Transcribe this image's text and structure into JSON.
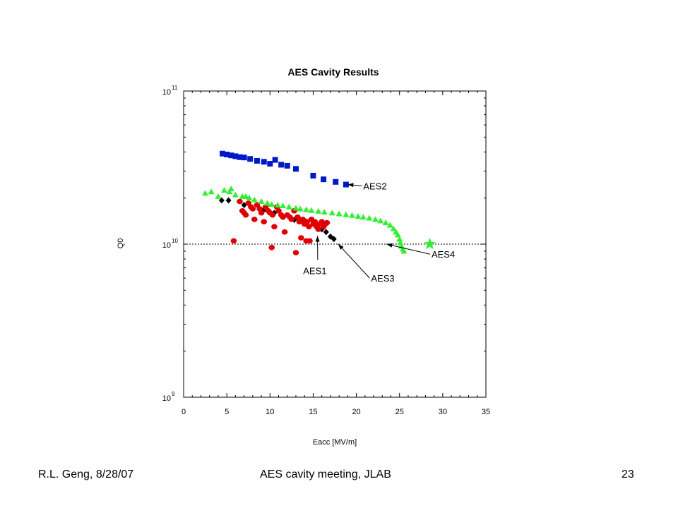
{
  "footer": {
    "left": "R.L. Geng, 8/28/07",
    "center": "AES cavity meeting, JLAB",
    "right": "23"
  },
  "colors": {
    "AES1": "#e00000",
    "AES2": "#0018c8",
    "AES3": "#000000",
    "AES4": "#33ee33",
    "reference_line": "#000000"
  },
  "chart_data": {
    "type": "scatter",
    "title": "AES Cavity Results",
    "xlabel": "Eacc [MV/m]",
    "ylabel": "Q0",
    "xlim": [
      0,
      35
    ],
    "ylim": [
      1000000000.0,
      100000000000.0
    ],
    "y_scale": "log",
    "x_ticks": [
      0,
      5,
      10,
      15,
      20,
      25,
      30,
      35
    ],
    "x_tick_labels": [
      "0",
      "5",
      "10",
      "15",
      "20",
      "25",
      "30",
      "35"
    ],
    "y_ticks": [
      1000000000.0,
      10000000000.0,
      100000000000.0
    ],
    "y_tick_labels": [
      {
        "base": "10",
        "exp": "9"
      },
      {
        "base": "10",
        "exp": "10"
      },
      {
        "base": "10",
        "exp": "11"
      }
    ],
    "grid": false,
    "reference_line": {
      "y": 10000000000.0,
      "style": "dotted"
    },
    "series": [
      {
        "label": "AES2",
        "marker": "square",
        "points": [
          [
            4.5,
            39000000000.0
          ],
          [
            5.0,
            38500000000.0
          ],
          [
            5.5,
            38000000000.0
          ],
          [
            6.0,
            37500000000.0
          ],
          [
            6.5,
            37000000000.0
          ],
          [
            7.0,
            36800000000.0
          ],
          [
            7.7,
            36000000000.0
          ],
          [
            8.5,
            35000000000.0
          ],
          [
            9.3,
            34500000000.0
          ],
          [
            10.0,
            33500000000.0
          ],
          [
            10.6,
            35500000000.0
          ],
          [
            11.3,
            33000000000.0
          ],
          [
            12.0,
            32500000000.0
          ],
          [
            13.0,
            31000000000.0
          ],
          [
            15.0,
            28000000000.0
          ],
          [
            16.2,
            26500000000.0
          ],
          [
            17.6,
            25500000000.0
          ],
          [
            18.8,
            24500000000.0
          ]
        ]
      },
      {
        "label": "AES3",
        "marker": "diamond",
        "points": [
          [
            4.4,
            19300000000.0
          ],
          [
            5.2,
            19300000000.0
          ],
          [
            7.0,
            18000000000.0
          ],
          [
            9.3,
            16800000000.0
          ],
          [
            10.5,
            16000000000.0
          ],
          [
            12.8,
            14400000000.0
          ],
          [
            14.2,
            14000000000.0
          ],
          [
            15.5,
            13300000000.0
          ],
          [
            16.0,
            12500000000.0
          ],
          [
            16.5,
            12000000000.0
          ],
          [
            17.0,
            11200000000.0
          ],
          [
            17.4,
            10800000000.0
          ]
        ]
      },
      {
        "label": "AES1",
        "marker": "circle",
        "points": [
          [
            5.8,
            10500000000.0
          ],
          [
            6.5,
            19000000000.0
          ],
          [
            6.8,
            16500000000.0
          ],
          [
            7.0,
            16000000000.0
          ],
          [
            7.2,
            15500000000.0
          ],
          [
            7.5,
            18500000000.0
          ],
          [
            7.8,
            17500000000.0
          ],
          [
            8.0,
            17000000000.0
          ],
          [
            8.2,
            14500000000.0
          ],
          [
            8.5,
            18000000000.0
          ],
          [
            8.8,
            17000000000.0
          ],
          [
            9.0,
            16000000000.0
          ],
          [
            9.3,
            14000000000.0
          ],
          [
            9.5,
            17500000000.0
          ],
          [
            9.8,
            16500000000.0
          ],
          [
            10.0,
            16000000000.0
          ],
          [
            10.2,
            9500000000.0
          ],
          [
            10.3,
            15500000000.0
          ],
          [
            10.5,
            13000000000.0
          ],
          [
            10.8,
            17500000000.0
          ],
          [
            11.0,
            16500000000.0
          ],
          [
            11.3,
            15500000000.0
          ],
          [
            11.5,
            15000000000.0
          ],
          [
            11.7,
            12000000000.0
          ],
          [
            12.0,
            15500000000.0
          ],
          [
            12.3,
            15000000000.0
          ],
          [
            12.5,
            14500000000.0
          ],
          [
            12.8,
            16500000000.0
          ],
          [
            13.0,
            8800000000.0
          ],
          [
            13.2,
            15000000000.0
          ],
          [
            13.4,
            14000000000.0
          ],
          [
            13.6,
            11000000000.0
          ],
          [
            13.8,
            14500000000.0
          ],
          [
            14.0,
            13500000000.0
          ],
          [
            14.2,
            10500000000.0
          ],
          [
            14.3,
            14000000000.0
          ],
          [
            14.5,
            13000000000.0
          ],
          [
            14.6,
            10500000000.0
          ],
          [
            14.8,
            14500000000.0
          ],
          [
            15.0,
            13500000000.0
          ],
          [
            15.2,
            14000000000.0
          ],
          [
            15.4,
            13000000000.0
          ],
          [
            15.6,
            12500000000.0
          ],
          [
            15.8,
            13500000000.0
          ],
          [
            16.0,
            14000000000.0
          ],
          [
            16.2,
            13000000000.0
          ],
          [
            16.4,
            13500000000.0
          ],
          [
            16.6,
            13800000000.0
          ]
        ]
      },
      {
        "label": "AES4",
        "marker": "triangle",
        "points": [
          [
            2.5,
            21500000000.0
          ],
          [
            3.2,
            22000000000.0
          ],
          [
            4.0,
            20500000000.0
          ],
          [
            4.7,
            22500000000.0
          ],
          [
            5.3,
            22000000000.0
          ],
          [
            5.5,
            23000000000.0
          ],
          [
            6.0,
            21000000000.0
          ],
          [
            6.8,
            20500000000.0
          ],
          [
            7.2,
            20500000000.0
          ],
          [
            7.6,
            20000000000.0
          ],
          [
            8.2,
            19500000000.0
          ],
          [
            9.0,
            19000000000.0
          ],
          [
            9.7,
            18500000000.0
          ],
          [
            10.2,
            18200000000.0
          ],
          [
            10.9,
            18000000000.0
          ],
          [
            11.5,
            17800000000.0
          ],
          [
            12.2,
            17500000000.0
          ],
          [
            13.0,
            17200000000.0
          ],
          [
            13.5,
            17000000000.0
          ],
          [
            14.2,
            16800000000.0
          ],
          [
            14.8,
            16600000000.0
          ],
          [
            15.6,
            16400000000.0
          ],
          [
            16.3,
            16200000000.0
          ],
          [
            17.2,
            16000000000.0
          ],
          [
            18.0,
            15800000000.0
          ],
          [
            18.8,
            15600000000.0
          ],
          [
            19.5,
            15400000000.0
          ],
          [
            20.2,
            15200000000.0
          ],
          [
            20.8,
            15000000000.0
          ],
          [
            21.5,
            14800000000.0
          ],
          [
            22.2,
            14500000000.0
          ],
          [
            22.8,
            14200000000.0
          ],
          [
            23.4,
            13800000000.0
          ],
          [
            23.9,
            13300000000.0
          ],
          [
            24.3,
            12600000000.0
          ],
          [
            24.6,
            12000000000.0
          ],
          [
            24.8,
            11500000000.0
          ],
          [
            25.0,
            10800000000.0
          ],
          [
            25.1,
            10200000000.0
          ],
          [
            25.2,
            9700000000.0
          ],
          [
            25.4,
            9300000000.0
          ],
          [
            25.5,
            9000000000.0
          ]
        ],
        "star_point": [
          28.5,
          10000000000.0
        ]
      }
    ],
    "annotations": [
      {
        "text": "AES2",
        "series": "AES2",
        "tip": [
          19.0,
          24500000000.0
        ],
        "text_anchor": [
          20.8,
          24000000000.0
        ]
      },
      {
        "text": "AES1",
        "series": "AES1",
        "tip": [
          15.5,
          11300000000.0
        ],
        "text_anchor": [
          15.2,
          7400000000.0
        ]
      },
      {
        "text": "AES3",
        "series": "AES3",
        "tip": [
          17.9,
          10000000000.0
        ],
        "text_anchor": [
          21.7,
          6000000000.0
        ]
      },
      {
        "text": "AES4",
        "series": "AES4",
        "tip": [
          23.5,
          10000000000.0
        ],
        "text_anchor": [
          28.7,
          8600000000.0
        ]
      }
    ]
  }
}
